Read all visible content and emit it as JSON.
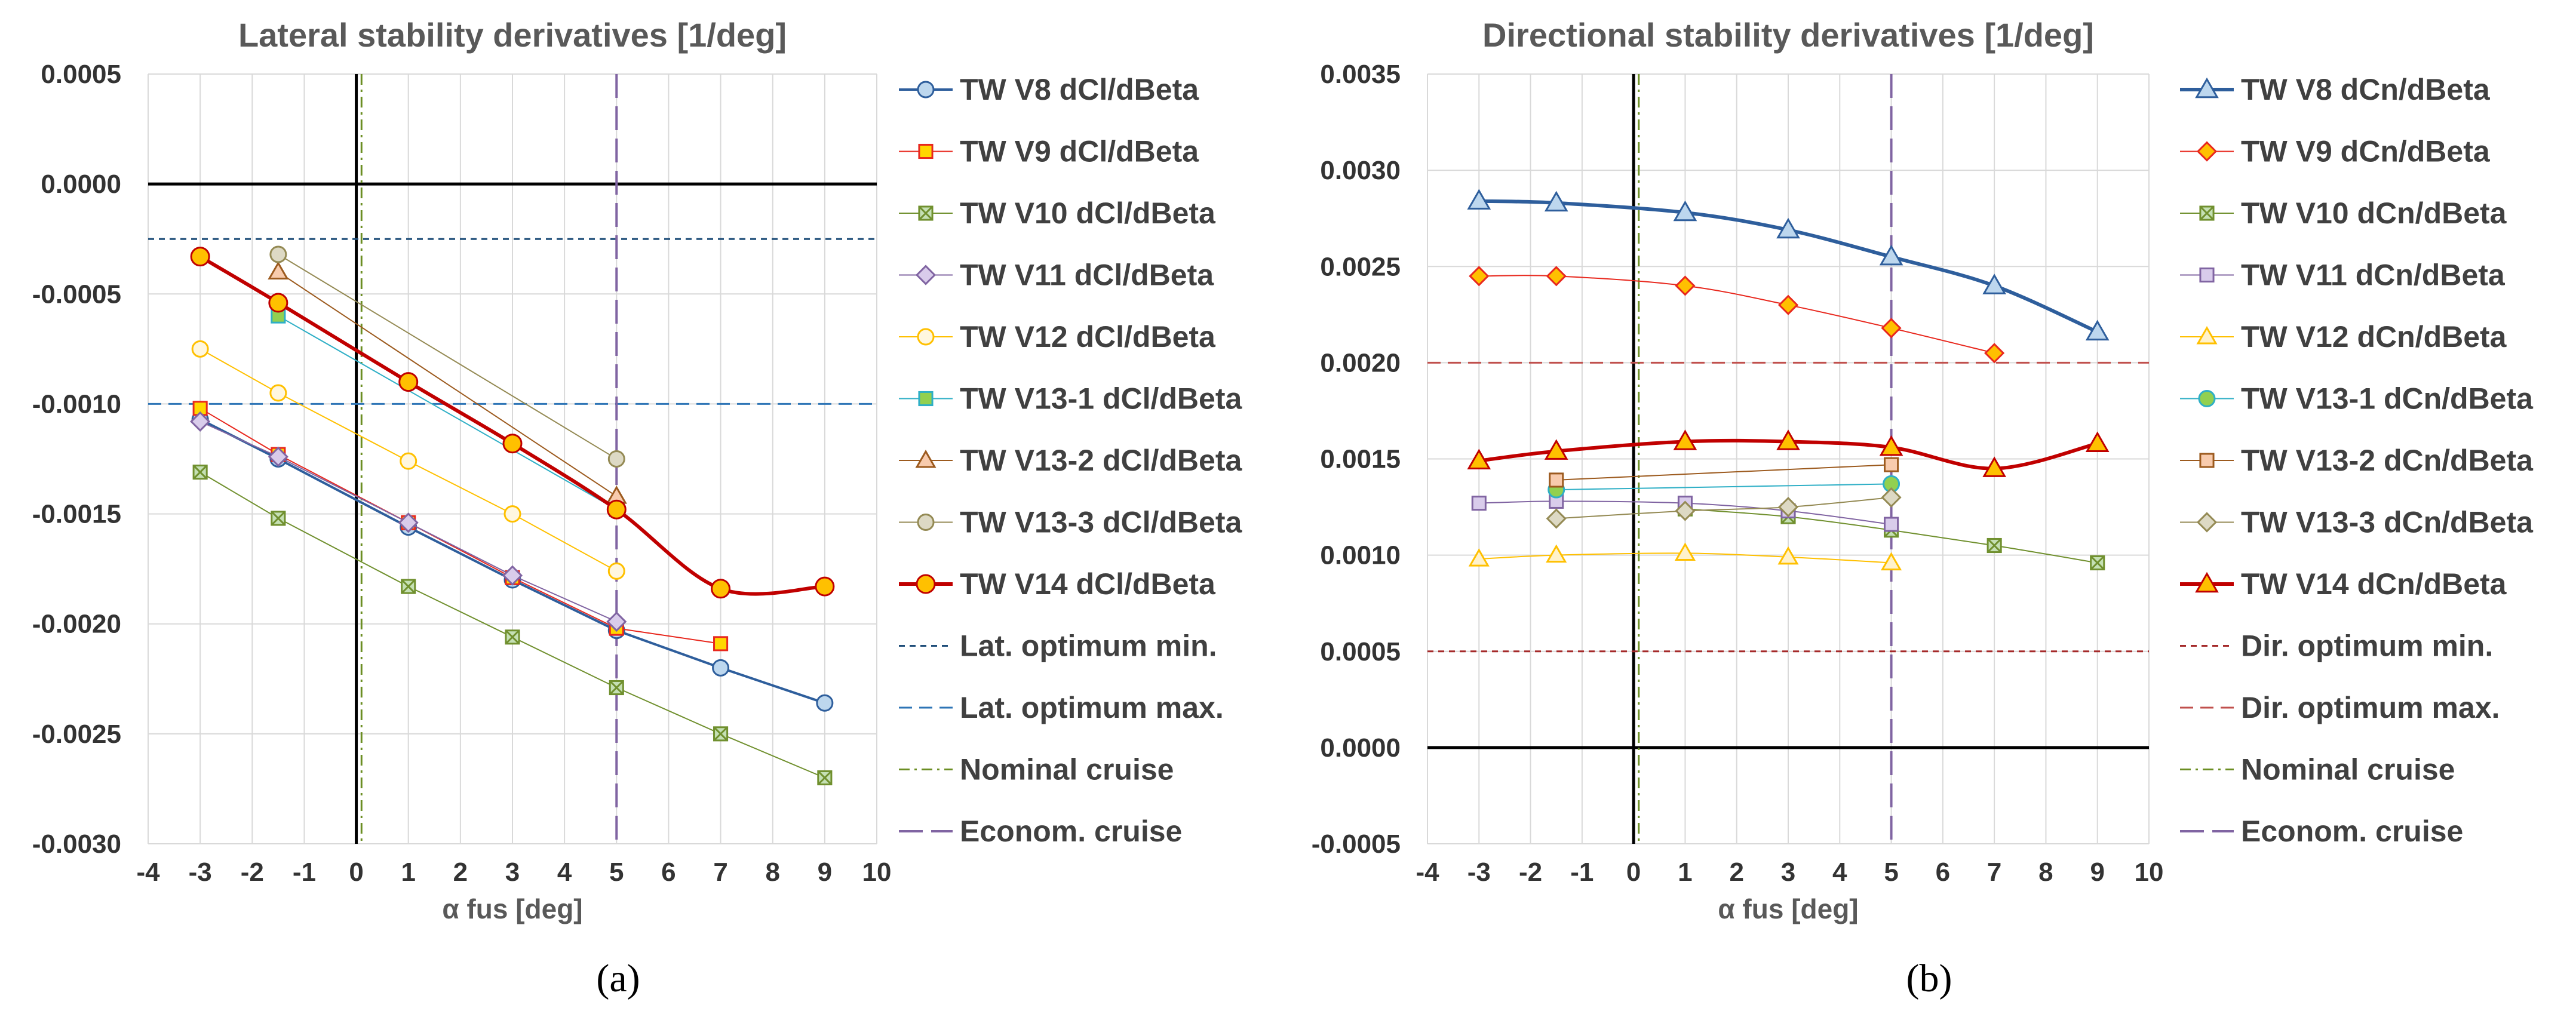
{
  "chart_data": [
    {
      "type": "line",
      "title": "Lateral stability derivatives [1/deg]",
      "xlabel": "α fus [deg]",
      "ylabel": "",
      "sublabel": "(a)",
      "xlim": [
        -4,
        10
      ],
      "ylim": [
        -0.003,
        0.0005
      ],
      "xticks": [
        -4,
        -3,
        -2,
        -1,
        0,
        1,
        2,
        3,
        4,
        5,
        6,
        7,
        8,
        9,
        10
      ],
      "xtick_labels": [
        "-4",
        "-3",
        "-2",
        "-1",
        "0",
        "1",
        "2",
        "3",
        "4",
        "5",
        "6",
        "7",
        "8",
        "9",
        "10"
      ],
      "yticks": [
        -0.003,
        -0.0025,
        -0.002,
        -0.0015,
        -0.001,
        -0.0005,
        0,
        0.0005
      ],
      "ytick_labels": [
        "-0.0030",
        "-0.0025",
        "-0.0020",
        "-0.0015",
        "-0.0010",
        "-0.0005",
        "0.0000",
        "0.0005"
      ],
      "grid": true,
      "legend_position": "right",
      "series": [
        {
          "name": "TW V8 dCl/dBeta",
          "color": "#2E5E9C",
          "marker": "circle",
          "fill": "#BDD7EE",
          "width": 4,
          "smooth": false,
          "x": [
            -3,
            -1.5,
            1,
            3,
            5,
            7,
            9
          ],
          "y": [
            -0.00107,
            -0.00125,
            -0.00156,
            -0.0018,
            -0.00203,
            -0.0022,
            -0.00236
          ]
        },
        {
          "name": "TW V9 dCl/dBeta",
          "color": "#E8281E",
          "marker": "square",
          "fill": "#FFD700",
          "width": 2,
          "smooth": false,
          "x": [
            -3,
            -1.5,
            1,
            3,
            5,
            7
          ],
          "y": [
            -0.00102,
            -0.00123,
            -0.00154,
            -0.00179,
            -0.00202,
            -0.00209
          ]
        },
        {
          "name": "TW V10 dCl/dBeta",
          "color": "#70902E",
          "marker": "xsquare",
          "fill": "#C5E0B4",
          "width": 2,
          "smooth": false,
          "x": [
            -3,
            -1.5,
            1,
            3,
            5,
            7,
            9
          ],
          "y": [
            -0.00131,
            -0.00152,
            -0.00183,
            -0.00206,
            -0.00229,
            -0.0025,
            -0.0027
          ]
        },
        {
          "name": "TW V11 dCl/dBeta",
          "color": "#8064A2",
          "marker": "diamond",
          "fill": "#D9CCEB",
          "width": 2,
          "smooth": false,
          "x": [
            -3,
            -1.5,
            1,
            3,
            5
          ],
          "y": [
            -0.00108,
            -0.00124,
            -0.00154,
            -0.00178,
            -0.00199
          ]
        },
        {
          "name": "TW V12 dCl/dBeta",
          "color": "#FFC000",
          "marker": "circle",
          "fill": "#FFF7E0",
          "width": 2,
          "smooth": false,
          "x": [
            -3,
            -1.5,
            1,
            3,
            5
          ],
          "y": [
            -0.00075,
            -0.00095,
            -0.00126,
            -0.0015,
            -0.00176
          ]
        },
        {
          "name": "TW V13-1 dCl/dBeta",
          "color": "#2EAFC6",
          "marker": "square",
          "fill": "#92D050",
          "width": 2,
          "smooth": false,
          "x": [
            -1.5,
            5
          ],
          "y": [
            -0.0006,
            -0.00148
          ]
        },
        {
          "name": "TW V13-2 dCl/dBeta",
          "color": "#9C5A1E",
          "marker": "triangle",
          "fill": "#F8CBAD",
          "width": 2,
          "smooth": false,
          "x": [
            -1.5,
            5
          ],
          "y": [
            -0.0004,
            -0.00142
          ]
        },
        {
          "name": "TW V13-3 dCl/dBeta",
          "color": "#948A54",
          "marker": "circle",
          "fill": "#DDD9C4",
          "width": 2,
          "smooth": false,
          "x": [
            -1.5,
            5
          ],
          "y": [
            -0.00032,
            -0.00125
          ]
        },
        {
          "name": "TW V14 dCl/dBeta",
          "color": "#C00000",
          "marker": "circle",
          "fill": "#FFC000",
          "width": 6,
          "smooth": true,
          "x": [
            -3,
            -1.5,
            1,
            3,
            5,
            7,
            9
          ],
          "y": [
            -0.00033,
            -0.00054,
            -0.0009,
            -0.00118,
            -0.00148,
            -0.00184,
            -0.00183
          ]
        },
        {
          "name": "Lat. optimum min.",
          "color": "#1F4E79",
          "dash": "10 8",
          "width": 3,
          "ref": "h",
          "value": -0.00025
        },
        {
          "name": "Lat. optimum max.",
          "color": "#2E75B6",
          "dash": "22 12",
          "width": 3,
          "ref": "h",
          "value": -0.001
        },
        {
          "name": "Nominal cruise",
          "color": "#6B8E23",
          "dash": "18 8 4 8",
          "width": 3,
          "ref": "v",
          "value": 0.1
        },
        {
          "name": "Econom. cruise",
          "color": "#8064A2",
          "dash": "40 14",
          "width": 4,
          "ref": "v",
          "value": 5
        }
      ]
    },
    {
      "type": "line",
      "title": "Directional stability derivatives [1/deg]",
      "xlabel": "α fus [deg]",
      "ylabel": "",
      "sublabel": "(b)",
      "xlim": [
        -4,
        10
      ],
      "ylim": [
        -0.0005,
        0.0035
      ],
      "xticks": [
        -4,
        -3,
        -2,
        -1,
        0,
        1,
        2,
        3,
        4,
        5,
        6,
        7,
        8,
        9,
        10
      ],
      "xtick_labels": [
        "-4",
        "-3",
        "-2",
        "-1",
        "0",
        "1",
        "2",
        "3",
        "4",
        "5",
        "6",
        "7",
        "8",
        "9",
        "10"
      ],
      "yticks": [
        -0.0005,
        0,
        0.0005,
        0.001,
        0.0015,
        0.002,
        0.0025,
        0.003,
        0.0035
      ],
      "ytick_labels": [
        "-0.0005",
        "0.0000",
        "0.0005",
        "0.0010",
        "0.0015",
        "0.0020",
        "0.0025",
        "0.0030",
        "0.0035"
      ],
      "grid": true,
      "legend_position": "right",
      "series": [
        {
          "name": "TW V8 dCn/dBeta",
          "color": "#2E5E9C",
          "marker": "triangle",
          "fill": "#BDD7EE",
          "width": 6,
          "smooth": true,
          "x": [
            -3,
            -1.5,
            1,
            3,
            5,
            7,
            9
          ],
          "y": [
            0.00284,
            0.00283,
            0.00278,
            0.00269,
            0.00255,
            0.0024,
            0.00216
          ]
        },
        {
          "name": "TW V9 dCn/dBeta",
          "color": "#E8281E",
          "marker": "diamond",
          "fill": "#FFC000",
          "width": 2,
          "smooth": true,
          "x": [
            -3,
            -1.5,
            1,
            3,
            5,
            7
          ],
          "y": [
            0.00245,
            0.00245,
            0.0024,
            0.0023,
            0.00218,
            0.00205
          ]
        },
        {
          "name": "TW V10 dCn/dBeta",
          "color": "#70902E",
          "marker": "xsquare",
          "fill": "#C5E0B4",
          "width": 2,
          "smooth": true,
          "x": [
            1,
            3,
            5,
            7,
            9
          ],
          "y": [
            0.00124,
            0.0012,
            0.00113,
            0.00105,
            0.00096
          ]
        },
        {
          "name": "TW V11 dCn/dBeta",
          "color": "#8064A2",
          "marker": "square",
          "fill": "#D9CCEB",
          "width": 2,
          "smooth": true,
          "x": [
            -3,
            -1.5,
            1,
            3,
            5
          ],
          "y": [
            0.00127,
            0.00128,
            0.00127,
            0.00123,
            0.00116
          ]
        },
        {
          "name": "TW V12 dCn/dBeta",
          "color": "#FFC000",
          "marker": "triangle",
          "fill": "#FFF2CC",
          "width": 2,
          "smooth": true,
          "x": [
            -3,
            -1.5,
            1,
            3,
            5
          ],
          "y": [
            0.00098,
            0.001,
            0.00101,
            0.00099,
            0.00096
          ]
        },
        {
          "name": "TW V13-1 dCn/dBeta",
          "color": "#2EAFC6",
          "marker": "circle",
          "fill": "#92D050",
          "width": 2,
          "smooth": false,
          "x": [
            -1.5,
            5
          ],
          "y": [
            0.00134,
            0.00137
          ]
        },
        {
          "name": "TW V13-2 dCn/dBeta",
          "color": "#9C5A1E",
          "marker": "square",
          "fill": "#F8CBAD",
          "width": 2,
          "smooth": false,
          "x": [
            -1.5,
            5
          ],
          "y": [
            0.00139,
            0.00147
          ]
        },
        {
          "name": "TW V13-3 dCn/dBeta",
          "color": "#948A54",
          "marker": "diamond",
          "fill": "#DDD9C4",
          "width": 2,
          "smooth": true,
          "x": [
            -1.5,
            1,
            3,
            5
          ],
          "y": [
            0.00119,
            0.00123,
            0.00125,
            0.0013
          ]
        },
        {
          "name": "TW V14 dCn/dBeta",
          "color": "#C00000",
          "marker": "triangle",
          "fill": "#FFC000",
          "width": 6,
          "smooth": true,
          "x": [
            -3,
            -1.5,
            1,
            3,
            5,
            7,
            9
          ],
          "y": [
            0.00149,
            0.00154,
            0.00159,
            0.00159,
            0.00156,
            0.00145,
            0.00158
          ]
        },
        {
          "name": "Dir. optimum min.",
          "color": "#A52A2A",
          "dash": "10 8",
          "width": 3,
          "ref": "h",
          "value": 0.0005
        },
        {
          "name": "Dir. optimum max.",
          "color": "#C0504D",
          "dash": "22 12",
          "width": 3,
          "ref": "h",
          "value": 0.002
        },
        {
          "name": "Nominal cruise",
          "color": "#6B8E23",
          "dash": "18 8 4 8",
          "width": 3,
          "ref": "v",
          "value": 0.1
        },
        {
          "name": "Econom. cruise",
          "color": "#8064A2",
          "dash": "40 14",
          "width": 4,
          "ref": "v",
          "value": 5
        }
      ]
    }
  ]
}
